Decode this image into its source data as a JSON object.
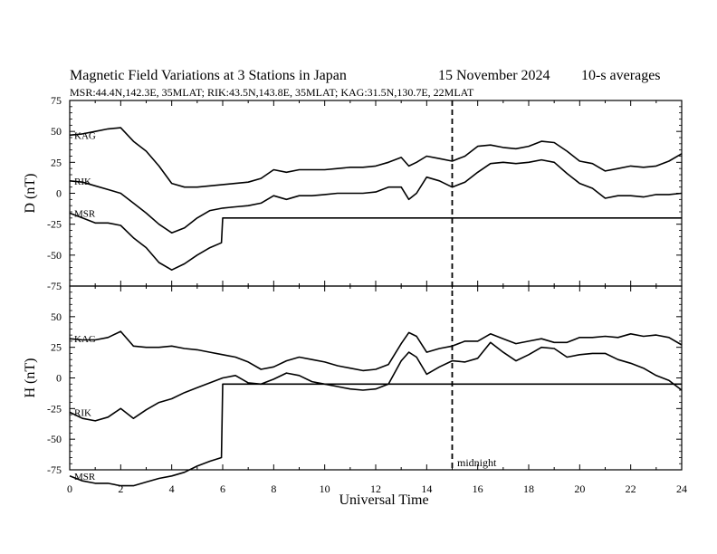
{
  "title": "Magnetic Field Variations at 3 Stations in Japan",
  "date": "15 November 2024",
  "averaging": "10-s averages",
  "subtitle": "MSR:44.4N,142.3E, 35MLAT;  RIK:43.5N,143.8E, 35MLAT;  KAG:31.5N,130.7E, 22MLAT",
  "midnight_label": "midnight",
  "chart_data": [
    {
      "type": "line",
      "panel": "top",
      "ylabel": "D (nT)",
      "xlabel": "",
      "ylim": [
        -75,
        75
      ],
      "yticks": [
        75,
        50,
        25,
        0,
        -25,
        -50,
        -75
      ],
      "xlim": [
        0,
        24
      ],
      "series": [
        {
          "name": "KAG",
          "x": [
            0,
            0.5,
            1,
            1.5,
            2,
            2.5,
            3,
            3.5,
            4,
            4.5,
            5,
            5.5,
            6,
            6.5,
            7,
            7.5,
            8,
            8.5,
            9,
            9.5,
            10,
            10.5,
            11,
            11.5,
            12,
            12.5,
            13,
            13.3,
            13.6,
            14,
            14.5,
            15,
            15.5,
            16,
            16.5,
            17,
            17.5,
            18,
            18.5,
            19,
            19.5,
            20,
            20.5,
            21,
            21.5,
            22,
            22.5,
            23,
            23.5,
            24
          ],
          "y": [
            47,
            48,
            50,
            52,
            53,
            42,
            34,
            22,
            8,
            5,
            5,
            6,
            7,
            8,
            9,
            12,
            19,
            17,
            19,
            19,
            19,
            20,
            21,
            21,
            22,
            25,
            29,
            22,
            25,
            30,
            28,
            26,
            30,
            38,
            39,
            37,
            36,
            38,
            42,
            41,
            34,
            26,
            24,
            18,
            20,
            22,
            21,
            22,
            26,
            32
          ]
        },
        {
          "name": "RIK",
          "x": [
            0,
            0.5,
            1,
            1.5,
            2,
            2.5,
            3,
            3.5,
            4,
            4.5,
            5,
            5.5,
            6,
            6.5,
            7,
            7.5,
            8,
            8.5,
            9,
            9.5,
            10,
            10.5,
            11,
            11.5,
            12,
            12.5,
            13,
            13.3,
            13.6,
            14,
            14.5,
            15,
            15.5,
            16,
            16.5,
            17,
            17.5,
            18,
            18.5,
            19,
            19.5,
            20,
            20.5,
            21,
            21.5,
            22,
            22.5,
            23,
            23.5,
            24
          ],
          "y": [
            10,
            9,
            6,
            3,
            0,
            -8,
            -16,
            -25,
            -32,
            -28,
            -20,
            -14,
            -12,
            -11,
            -10,
            -8,
            -2,
            -5,
            -2,
            -2,
            -1,
            0,
            0,
            0,
            1,
            5,
            5,
            -5,
            0,
            13,
            10,
            5,
            9,
            17,
            24,
            25,
            24,
            25,
            27,
            25,
            16,
            8,
            4,
            -4,
            -2,
            -2,
            -3,
            -1,
            -1,
            0
          ]
        },
        {
          "name": "MSR",
          "x": [
            0,
            0.5,
            1,
            1.5,
            2,
            2.5,
            3,
            3.5,
            4,
            4.5,
            5,
            5.5,
            5.95,
            6,
            24
          ],
          "y": [
            -16,
            -20,
            -24,
            -24,
            -26,
            -36,
            -44,
            -56,
            -62,
            -57,
            -50,
            -44,
            -40,
            -20,
            -20
          ]
        }
      ]
    },
    {
      "type": "line",
      "panel": "bottom",
      "ylabel": "H (nT)",
      "xlabel": "Universal Time",
      "ylim": [
        -75,
        75
      ],
      "yticks": [
        50,
        25,
        0,
        -25,
        -50,
        -75
      ],
      "xlim": [
        0,
        24
      ],
      "xticks": [
        0,
        2,
        4,
        6,
        8,
        10,
        12,
        14,
        16,
        18,
        20,
        22,
        24
      ],
      "series": [
        {
          "name": "KAG",
          "x": [
            0,
            0.5,
            1,
            1.5,
            2,
            2.5,
            3,
            3.5,
            4,
            4.5,
            5,
            5.5,
            6,
            6.5,
            7,
            7.5,
            8,
            8.5,
            9,
            9.5,
            10,
            10.5,
            11,
            11.5,
            12,
            12.5,
            13,
            13.3,
            13.6,
            14,
            14.5,
            15,
            15.5,
            16,
            16.5,
            17,
            17.5,
            18,
            18.5,
            19,
            19.5,
            20,
            20.5,
            21,
            21.5,
            22,
            22.5,
            23,
            23.5,
            24
          ],
          "y": [
            32,
            31,
            31,
            33,
            38,
            26,
            25,
            25,
            26,
            24,
            23,
            21,
            19,
            17,
            13,
            7,
            9,
            14,
            17,
            15,
            13,
            10,
            8,
            6,
            7,
            11,
            28,
            37,
            34,
            21,
            24,
            26,
            30,
            30,
            36,
            32,
            28,
            30,
            32,
            29,
            29,
            33,
            33,
            34,
            33,
            36,
            34,
            35,
            33,
            27
          ]
        },
        {
          "name": "RIK",
          "x": [
            0,
            0.5,
            1,
            1.5,
            2,
            2.5,
            3,
            3.5,
            4,
            4.5,
            5,
            5.5,
            6,
            6.5,
            7,
            7.5,
            8,
            8.5,
            9,
            9.5,
            10,
            10.5,
            11,
            11.5,
            12,
            12.5,
            13,
            13.3,
            13.6,
            14,
            14.5,
            15,
            15.5,
            16,
            16.5,
            17,
            17.5,
            18,
            18.5,
            19,
            19.5,
            20,
            20.5,
            21,
            21.5,
            22,
            22.5,
            23,
            23.5,
            24
          ],
          "y": [
            -28,
            -33,
            -35,
            -32,
            -25,
            -33,
            -26,
            -20,
            -17,
            -12,
            -8,
            -4,
            0,
            2,
            -4,
            -5,
            -1,
            4,
            2,
            -3,
            -5,
            -7,
            -9,
            -10,
            -9,
            -5,
            14,
            21,
            17,
            3,
            9,
            14,
            13,
            16,
            29,
            21,
            14,
            19,
            25,
            24,
            17,
            19,
            20,
            20,
            15,
            12,
            8,
            2,
            -2,
            -10
          ]
        },
        {
          "name": "MSR",
          "x": [
            0,
            0.5,
            1,
            1.5,
            2,
            2.5,
            3,
            3.5,
            4,
            4.5,
            5,
            5.5,
            5.95,
            6,
            24
          ],
          "y": [
            -80,
            -84,
            -86,
            -86,
            -88,
            -88,
            -85,
            -82,
            -80,
            -77,
            -72,
            -68,
            -65,
            -5,
            -5
          ]
        }
      ]
    }
  ],
  "midnight_x": 15
}
